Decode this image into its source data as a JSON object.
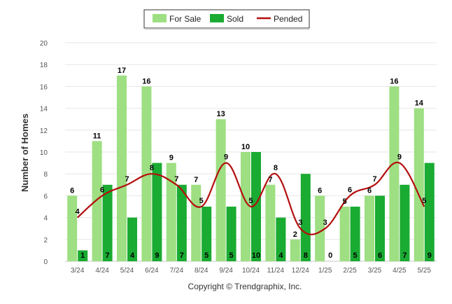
{
  "chart_data": {
    "type": "bar",
    "ylabel": "Number of Homes",
    "ylim": [
      0,
      20
    ],
    "yticks": [
      0,
      2,
      4,
      6,
      8,
      10,
      12,
      14,
      16,
      18,
      20
    ],
    "grid": true,
    "legend_placement": "top-center",
    "categories": [
      "3/24",
      "4/24",
      "5/24",
      "6/24",
      "7/24",
      "8/24",
      "9/24",
      "10/24",
      "11/24",
      "12/24",
      "1/25",
      "2/25",
      "3/25",
      "4/25",
      "5/25"
    ],
    "series": [
      {
        "name": "For Sale",
        "kind": "bar",
        "color": "#9ddf82",
        "values": [
          6,
          11,
          17,
          16,
          9,
          7,
          13,
          10,
          7,
          2,
          6,
          5,
          6,
          16,
          14
        ]
      },
      {
        "name": "Sold",
        "kind": "bar",
        "color": "#1aab32",
        "values": [
          1,
          7,
          4,
          9,
          7,
          5,
          5,
          10,
          4,
          8,
          0,
          5,
          6,
          7,
          9
        ]
      },
      {
        "name": "Pended",
        "kind": "line",
        "color": "#b40e0e",
        "values": [
          4,
          6,
          7,
          8,
          7,
          5,
          9,
          5,
          8,
          3,
          3,
          6,
          7,
          9,
          5
        ]
      }
    ],
    "credit": "Copyright © Trendgraphix, Inc."
  }
}
